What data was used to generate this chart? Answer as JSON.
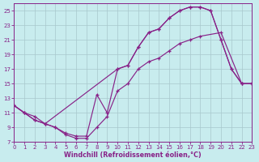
{
  "xlabel": "Windchill (Refroidissement éolien,°C)",
  "bg_color": "#c8ecee",
  "grid_color": "#a8c8cc",
  "line_color": "#882288",
  "xlim": [
    0,
    23
  ],
  "ylim": [
    7,
    26
  ],
  "xticks": [
    0,
    1,
    2,
    3,
    4,
    5,
    6,
    7,
    8,
    9,
    10,
    11,
    12,
    13,
    14,
    15,
    16,
    17,
    18,
    19,
    20,
    21,
    22,
    23
  ],
  "yticks": [
    7,
    9,
    11,
    13,
    15,
    17,
    19,
    21,
    23,
    25
  ],
  "line1_x": [
    0,
    1,
    2,
    3,
    4,
    5,
    6,
    7,
    8,
    9,
    10,
    11,
    12,
    13,
    14,
    15,
    16,
    17,
    18,
    20,
    22,
    23
  ],
  "line1_y": [
    12,
    11,
    10,
    9.5,
    9,
    8,
    7.5,
    7.5,
    9,
    10.5,
    14,
    15,
    17,
    18,
    18.5,
    19.5,
    20.5,
    21,
    21.5,
    22,
    15,
    15
  ],
  "line2_x": [
    0,
    1,
    2,
    3,
    10,
    11,
    12,
    13,
    14,
    15,
    16,
    17,
    18,
    19,
    20,
    21,
    22,
    23
  ],
  "line2_y": [
    12,
    11,
    10,
    9.5,
    17,
    17.5,
    20,
    22,
    22.5,
    24,
    25,
    25.5,
    25.5,
    25,
    21,
    17,
    15,
    15
  ],
  "line3_x": [
    0,
    1,
    2,
    3,
    4,
    5,
    6,
    7,
    8,
    9,
    10,
    11,
    12,
    13,
    14,
    15,
    16,
    17,
    18,
    19,
    20,
    21,
    22,
    23
  ],
  "line3_y": [
    12,
    11,
    10.5,
    9.5,
    9,
    8.2,
    7.8,
    7.8,
    13.5,
    11,
    17,
    17.5,
    20,
    22,
    22.5,
    24,
    25,
    25.5,
    25.5,
    25,
    21,
    17,
    15,
    15
  ]
}
